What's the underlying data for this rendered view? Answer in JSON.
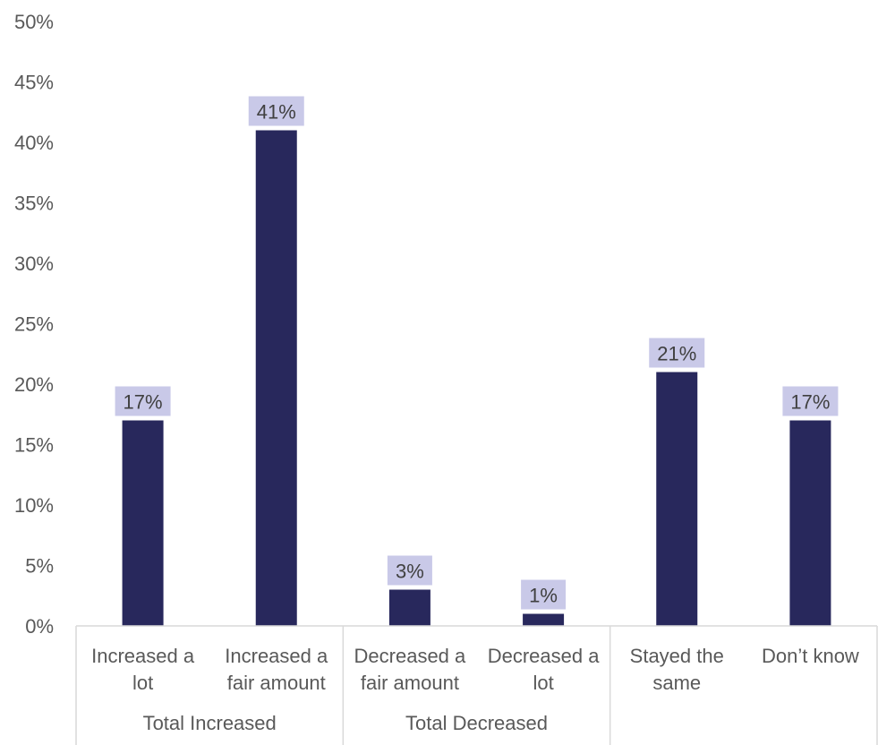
{
  "chart_data": {
    "type": "bar",
    "categories": [
      [
        "Increased a",
        "lot"
      ],
      [
        "Increased a",
        "fair amount"
      ],
      [
        "Decreased a",
        "fair amount"
      ],
      [
        "Decreased a",
        "lot"
      ],
      [
        "Stayed the",
        "same"
      ],
      [
        "Don’t know"
      ]
    ],
    "values": [
      17,
      41,
      3,
      1,
      21,
      17
    ],
    "value_labels": [
      "17%",
      "41%",
      "3%",
      "1%",
      "21%",
      "17%"
    ],
    "groups": [
      {
        "label": "Total Increased",
        "categories": [
          0,
          1
        ]
      },
      {
        "label": "Total Decreased",
        "categories": [
          2,
          3
        ]
      },
      {
        "label": "",
        "categories": [
          4,
          5
        ]
      }
    ],
    "ylim": [
      0,
      50
    ],
    "yticks": [
      0,
      5,
      10,
      15,
      20,
      25,
      30,
      35,
      40,
      45,
      50
    ],
    "ytick_labels": [
      "0%",
      "5%",
      "10%",
      "15%",
      "20%",
      "25%",
      "30%",
      "35%",
      "40%",
      "45%",
      "50%"
    ],
    "grid": false,
    "legend": "none",
    "title": "",
    "xlabel": "",
    "ylabel": "",
    "colors": {
      "bar": "#28285c",
      "label_bg": "#c9c9e8",
      "axis": "#d9d9d9",
      "text": "#595959"
    }
  }
}
